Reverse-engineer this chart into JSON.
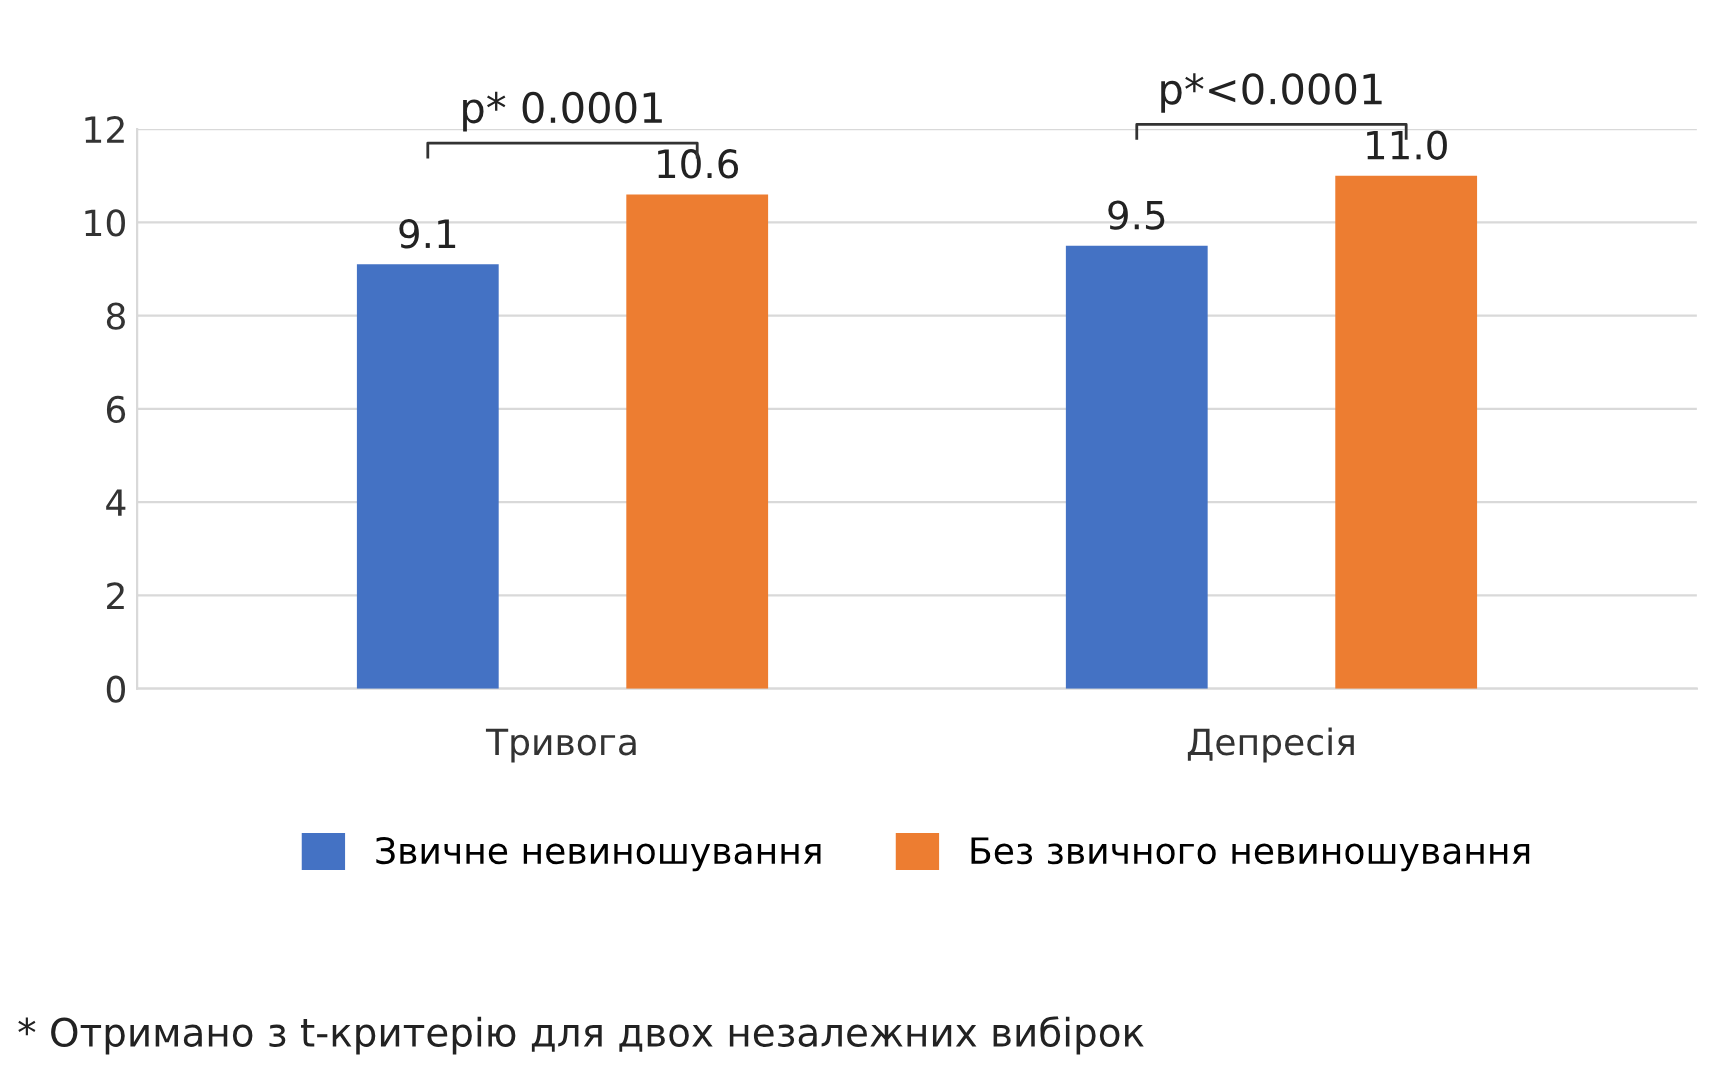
{
  "chart_data": {
    "type": "bar",
    "categories": [
      "Тривога",
      "Депресія"
    ],
    "series": [
      {
        "name": "Звичне невиношування",
        "color": "#4472c4",
        "values": [
          9.1,
          9.5
        ],
        "value_labels": [
          "9.1",
          "9.5"
        ]
      },
      {
        "name": "Без звичного невиношування",
        "color": "#ed7d31",
        "values": [
          10.6,
          11.0
        ],
        "value_labels": [
          "10.6",
          "11.0"
        ]
      }
    ],
    "ylim": [
      0,
      12
    ],
    "yticks": [
      0,
      2,
      4,
      6,
      8,
      10,
      12
    ],
    "grid": "y",
    "legend": "bottom",
    "annotations": [
      "p* 0.0001",
      "p*<0.0001",
      "* Отримано з t-критерію для двох незалежних вибірок"
    ]
  }
}
